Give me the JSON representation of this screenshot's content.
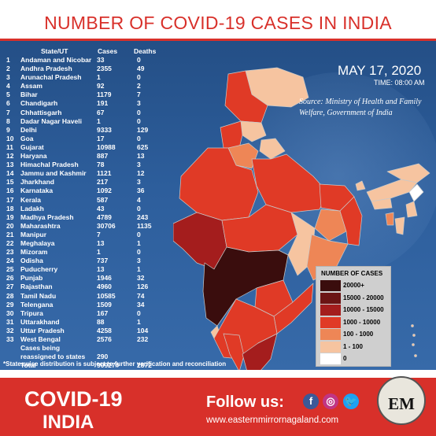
{
  "title": "NUMBER OF COVID-19 CASES IN INDIA",
  "table": {
    "headers": {
      "state": "State/UT",
      "cases": "Cases",
      "deaths": "Deaths"
    },
    "rows": [
      {
        "num": "1",
        "state": "Andaman and Nicobar",
        "cases": "33",
        "deaths": "0"
      },
      {
        "num": "2",
        "state": "Andhra Pradesh",
        "cases": "2355",
        "deaths": "49"
      },
      {
        "num": "3",
        "state": "Arunachal Pradesh",
        "cases": "1",
        "deaths": "0"
      },
      {
        "num": "4",
        "state": "Assam",
        "cases": "92",
        "deaths": "2"
      },
      {
        "num": "5",
        "state": "Bihar",
        "cases": "1179",
        "deaths": "7"
      },
      {
        "num": "6",
        "state": "Chandigarh",
        "cases": "191",
        "deaths": "3"
      },
      {
        "num": "7",
        "state": "Chhattisgarh",
        "cases": "67",
        "deaths": "0"
      },
      {
        "num": "8",
        "state": "Dadar Nagar Haveli",
        "cases": "1",
        "deaths": "0"
      },
      {
        "num": "9",
        "state": "Delhi",
        "cases": "9333",
        "deaths": "129"
      },
      {
        "num": "10",
        "state": "Goa",
        "cases": "17",
        "deaths": "0"
      },
      {
        "num": "11",
        "state": "Gujarat",
        "cases": "10988",
        "deaths": "625"
      },
      {
        "num": "12",
        "state": "Haryana",
        "cases": "887",
        "deaths": "13"
      },
      {
        "num": "13",
        "state": "Himachal Pradesh",
        "cases": "78",
        "deaths": "3"
      },
      {
        "num": "14",
        "state": "Jammu and Kashmir",
        "cases": "1121",
        "deaths": "12"
      },
      {
        "num": "15",
        "state": "Jharkhand",
        "cases": "217",
        "deaths": "3"
      },
      {
        "num": "16",
        "state": "Karnataka",
        "cases": "1092",
        "deaths": "36"
      },
      {
        "num": "17",
        "state": "Kerala",
        "cases": "587",
        "deaths": "4"
      },
      {
        "num": "18",
        "state": "Ladakh",
        "cases": "43",
        "deaths": "0"
      },
      {
        "num": "19",
        "state": "Madhya Pradesh",
        "cases": "4789",
        "deaths": "243"
      },
      {
        "num": "20",
        "state": "Maharashtra",
        "cases": "30706",
        "deaths": "1135"
      },
      {
        "num": "21",
        "state": "Manipur",
        "cases": "7",
        "deaths": "0"
      },
      {
        "num": "22",
        "state": "Meghalaya",
        "cases": "13",
        "deaths": "1"
      },
      {
        "num": "23",
        "state": "Mizoram",
        "cases": "1",
        "deaths": "0"
      },
      {
        "num": "24",
        "state": "Odisha",
        "cases": "737",
        "deaths": "3"
      },
      {
        "num": "25",
        "state": "Puducherry",
        "cases": "13",
        "deaths": "1"
      },
      {
        "num": "26",
        "state": "Punjab",
        "cases": "1946",
        "deaths": "32"
      },
      {
        "num": "27",
        "state": "Rajasthan",
        "cases": "4960",
        "deaths": "126"
      },
      {
        "num": "28",
        "state": "Tamil Nadu",
        "cases": "10585",
        "deaths": "74"
      },
      {
        "num": "29",
        "state": "Telengana",
        "cases": "1509",
        "deaths": "34"
      },
      {
        "num": "30",
        "state": "Tripura",
        "cases": "167",
        "deaths": "0"
      },
      {
        "num": "31",
        "state": "Uttarakhand",
        "cases": "88",
        "deaths": "1"
      },
      {
        "num": "32",
        "state": "Uttar Pradesh",
        "cases": "4258",
        "deaths": "104"
      },
      {
        "num": "33",
        "state": "West Bengal",
        "cases": "2576",
        "deaths": "232"
      },
      {
        "num": "",
        "state": "Cases being",
        "cases": "",
        "deaths": ""
      },
      {
        "num": "",
        "state": "reassigned to states",
        "cases": "290",
        "deaths": ""
      },
      {
        "num": "",
        "state": "Total",
        "cases": "90927#",
        "deaths": "2872"
      }
    ]
  },
  "footnote": "*Stateswise distribution is subject to further verification and reconciliation",
  "date": "MAY 17, 2020",
  "time": "TIME: 08:00 AM",
  "source": "Source: Ministry of Health and Family Welfare, Government of India",
  "legend": {
    "title": "NUMBER OF CASES",
    "items": [
      {
        "label": "20000+",
        "color": "#3a0d0d"
      },
      {
        "label": "15000 - 20000",
        "color": "#6b1414"
      },
      {
        "label": "10000 - 15000",
        "color": "#a41d1d"
      },
      {
        "label": "1000 - 10000",
        "color": "#e03a26"
      },
      {
        "label": "100 - 1000",
        "color": "#ee8656"
      },
      {
        "label": "1 - 100",
        "color": "#f6c4a0"
      },
      {
        "label": "0",
        "color": "#ffffff"
      }
    ]
  },
  "footer": {
    "covid": "COVID-19",
    "india": "INDIA",
    "follow": "Follow us:",
    "website": "www.easternmirrornagaland.com",
    "facebook": "f",
    "instagram": "◎",
    "twitter": "🐦",
    "logo": "EM"
  }
}
